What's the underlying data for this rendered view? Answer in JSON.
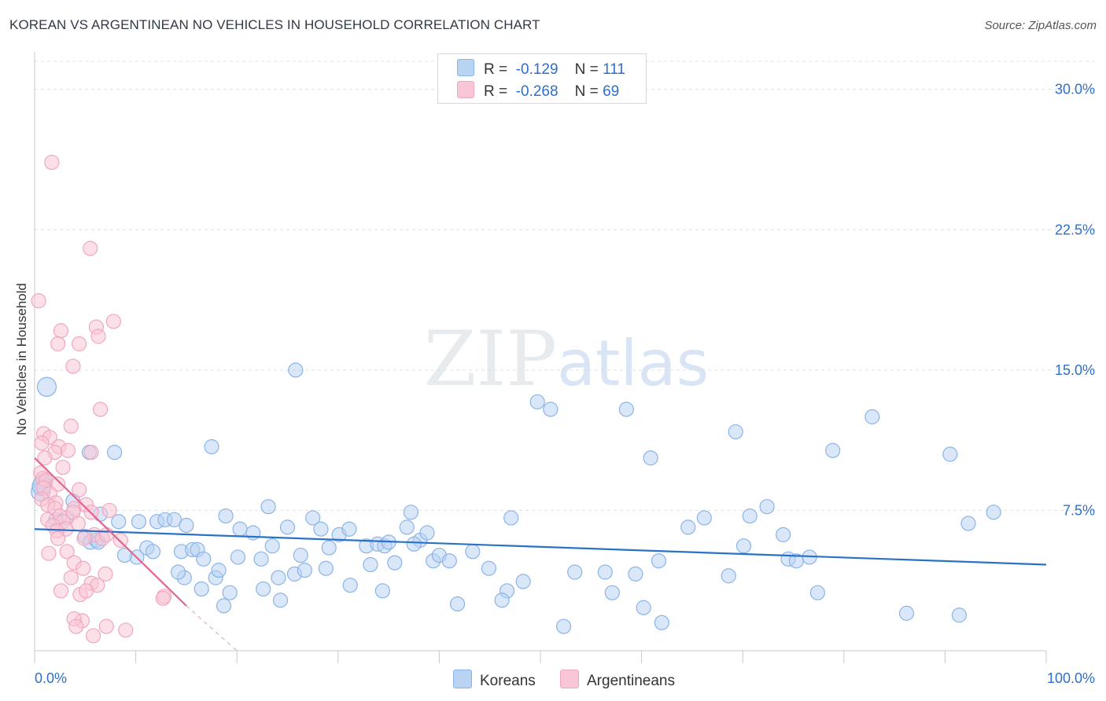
{
  "chart_data": {
    "type": "scatter",
    "title": "KOREAN VS ARGENTINEAN NO VEHICLES IN HOUSEHOLD CORRELATION CHART",
    "source": "Source: ZipAtlas.com",
    "xlabel": "",
    "ylabel": "No Vehicles in Household",
    "xlim": [
      0,
      100
    ],
    "ylim": [
      0,
      31.5
    ],
    "x_tick_labels": [
      "0.0%",
      "100.0%"
    ],
    "y_ticks": [
      7.5,
      15.0,
      22.5,
      30.0
    ],
    "y_tick_labels": [
      "7.5%",
      "15.0%",
      "22.5%",
      "30.0%"
    ],
    "grid": true,
    "watermark": "ZIPatlas",
    "legend": {
      "placement": "top-center",
      "entries": [
        {
          "series": "Koreans",
          "r_label": "R =",
          "r_value": "-0.129",
          "n_label": "N =",
          "n_value": "111"
        },
        {
          "series": "Argentineans",
          "r_label": "R =",
          "r_value": "-0.268",
          "n_label": "N =",
          "n_value": "69"
        }
      ]
    },
    "series": [
      {
        "name": "Koreans",
        "color": "#8ab4e8",
        "fill": "#b9d3f3",
        "line_color": "#2a72c8",
        "trend": {
          "x": [
            0,
            100
          ],
          "y": [
            6.5,
            4.6
          ]
        },
        "points": [
          [
            1.2,
            14.1
          ],
          [
            0.8,
            8.9
          ],
          [
            0.6,
            8.5
          ],
          [
            0.7,
            8.8
          ],
          [
            3.2,
            7.1
          ],
          [
            2.1,
            7.0
          ],
          [
            3.8,
            8.0
          ],
          [
            5.0,
            6.1
          ],
          [
            5.5,
            5.8
          ],
          [
            6.1,
            5.9
          ],
          [
            6.3,
            5.8
          ],
          [
            5.4,
            10.6
          ],
          [
            7.9,
            10.6
          ],
          [
            6.5,
            7.3
          ],
          [
            8.3,
            6.9
          ],
          [
            10.3,
            6.9
          ],
          [
            10.1,
            5.0
          ],
          [
            11.1,
            5.5
          ],
          [
            8.9,
            5.1
          ],
          [
            12.1,
            6.9
          ],
          [
            11.7,
            5.3
          ],
          [
            12.9,
            7.0
          ],
          [
            13.8,
            7.0
          ],
          [
            14.5,
            5.3
          ],
          [
            15.0,
            6.7
          ],
          [
            14.8,
            3.9
          ],
          [
            15.6,
            5.4
          ],
          [
            16.1,
            5.4
          ],
          [
            16.5,
            3.3
          ],
          [
            14.2,
            4.2
          ],
          [
            16.7,
            4.9
          ],
          [
            17.9,
            3.9
          ],
          [
            18.2,
            4.3
          ],
          [
            17.5,
            10.9
          ],
          [
            18.7,
            2.4
          ],
          [
            19.3,
            3.1
          ],
          [
            18.9,
            7.2
          ],
          [
            20.3,
            6.5
          ],
          [
            20.1,
            5.0
          ],
          [
            21.6,
            6.3
          ],
          [
            22.6,
            3.3
          ],
          [
            22.4,
            4.9
          ],
          [
            23.5,
            5.6
          ],
          [
            24.1,
            3.9
          ],
          [
            25.0,
            6.6
          ],
          [
            25.7,
            4.1
          ],
          [
            26.3,
            5.1
          ],
          [
            26.7,
            4.3
          ],
          [
            24.3,
            2.7
          ],
          [
            23.1,
            7.7
          ],
          [
            25.8,
            15.0
          ],
          [
            27.5,
            7.1
          ],
          [
            28.3,
            6.5
          ],
          [
            28.8,
            4.4
          ],
          [
            29.1,
            5.5
          ],
          [
            30.1,
            6.2
          ],
          [
            31.1,
            6.5
          ],
          [
            31.2,
            3.5
          ],
          [
            32.8,
            5.6
          ],
          [
            33.2,
            4.6
          ],
          [
            33.9,
            5.7
          ],
          [
            34.6,
            5.6
          ],
          [
            35.0,
            5.8
          ],
          [
            35.6,
            4.7
          ],
          [
            34.4,
            3.2
          ],
          [
            36.8,
            6.6
          ],
          [
            37.2,
            7.4
          ],
          [
            38.1,
            5.9
          ],
          [
            37.5,
            5.7
          ],
          [
            38.8,
            6.3
          ],
          [
            39.4,
            4.8
          ],
          [
            40.0,
            5.1
          ],
          [
            41.0,
            4.8
          ],
          [
            41.8,
            2.5
          ],
          [
            43.3,
            5.3
          ],
          [
            44.9,
            4.4
          ],
          [
            46.7,
            3.2
          ],
          [
            47.1,
            7.1
          ],
          [
            46.2,
            2.7
          ],
          [
            48.3,
            3.7
          ],
          [
            52.3,
            1.3
          ],
          [
            49.7,
            13.3
          ],
          [
            51.0,
            12.9
          ],
          [
            53.4,
            4.2
          ],
          [
            56.4,
            4.2
          ],
          [
            57.1,
            3.1
          ],
          [
            58.5,
            12.9
          ],
          [
            59.4,
            4.1
          ],
          [
            60.9,
            10.3
          ],
          [
            61.7,
            4.8
          ],
          [
            60.2,
            2.3
          ],
          [
            62.0,
            1.5
          ],
          [
            64.6,
            6.6
          ],
          [
            66.2,
            7.1
          ],
          [
            68.6,
            4.0
          ],
          [
            69.3,
            11.7
          ],
          [
            70.1,
            5.6
          ],
          [
            70.7,
            7.2
          ],
          [
            72.4,
            7.7
          ],
          [
            74.0,
            6.2
          ],
          [
            74.5,
            4.9
          ],
          [
            75.3,
            4.8
          ],
          [
            76.6,
            5.0
          ],
          [
            77.4,
            3.1
          ],
          [
            78.9,
            10.7
          ],
          [
            82.8,
            12.5
          ],
          [
            86.2,
            2.0
          ],
          [
            90.5,
            10.5
          ],
          [
            92.3,
            6.8
          ],
          [
            94.8,
            7.4
          ],
          [
            91.4,
            1.9
          ]
        ]
      },
      {
        "name": "Argentineans",
        "color": "#f2a6be",
        "fill": "#f8c6d6",
        "line_color": "#e26590",
        "trend": {
          "x": [
            0,
            15
          ],
          "y": [
            10.3,
            2.4
          ]
        },
        "trend_extension": {
          "x": [
            15,
            20
          ],
          "y": [
            2.4,
            0.0
          ]
        },
        "points": [
          [
            0.4,
            18.7
          ],
          [
            1.7,
            26.1
          ],
          [
            5.5,
            21.5
          ],
          [
            7.8,
            17.6
          ],
          [
            6.1,
            17.3
          ],
          [
            2.6,
            17.1
          ],
          [
            2.3,
            16.4
          ],
          [
            4.4,
            16.4
          ],
          [
            6.3,
            16.8
          ],
          [
            3.8,
            15.2
          ],
          [
            6.5,
            12.9
          ],
          [
            3.6,
            12.0
          ],
          [
            0.9,
            11.6
          ],
          [
            1.5,
            11.4
          ],
          [
            0.7,
            11.1
          ],
          [
            2.4,
            10.9
          ],
          [
            5.6,
            10.6
          ],
          [
            2.0,
            10.6
          ],
          [
            1.0,
            10.3
          ],
          [
            3.3,
            10.7
          ],
          [
            0.6,
            9.5
          ],
          [
            0.8,
            9.2
          ],
          [
            1.1,
            9.1
          ],
          [
            2.8,
            9.8
          ],
          [
            2.3,
            8.9
          ],
          [
            0.9,
            8.7
          ],
          [
            4.4,
            8.6
          ],
          [
            1.5,
            8.4
          ],
          [
            0.7,
            8.1
          ],
          [
            2.1,
            7.9
          ],
          [
            1.3,
            7.8
          ],
          [
            3.9,
            7.6
          ],
          [
            5.1,
            7.8
          ],
          [
            2.0,
            7.6
          ],
          [
            7.4,
            7.5
          ],
          [
            5.6,
            7.4
          ],
          [
            2.5,
            7.2
          ],
          [
            3.8,
            7.4
          ],
          [
            1.3,
            7.0
          ],
          [
            2.8,
            6.9
          ],
          [
            1.8,
            6.7
          ],
          [
            4.3,
            6.8
          ],
          [
            3.1,
            6.5
          ],
          [
            2.2,
            6.4
          ],
          [
            5.9,
            6.2
          ],
          [
            6.7,
            6.0
          ],
          [
            8.5,
            5.9
          ],
          [
            2.3,
            6.0
          ],
          [
            4.9,
            6.0
          ],
          [
            7.1,
            6.2
          ],
          [
            3.2,
            5.3
          ],
          [
            1.4,
            5.2
          ],
          [
            3.9,
            4.7
          ],
          [
            4.8,
            4.4
          ],
          [
            7.0,
            4.1
          ],
          [
            3.6,
            3.9
          ],
          [
            5.6,
            3.6
          ],
          [
            6.2,
            3.5
          ],
          [
            2.6,
            3.2
          ],
          [
            4.5,
            3.0
          ],
          [
            5.1,
            3.2
          ],
          [
            12.8,
            2.9
          ],
          [
            12.7,
            2.8
          ],
          [
            4.7,
            1.6
          ],
          [
            3.9,
            1.7
          ],
          [
            4.1,
            1.3
          ],
          [
            7.1,
            1.3
          ],
          [
            9.0,
            1.1
          ],
          [
            5.8,
            0.8
          ]
        ]
      }
    ]
  }
}
